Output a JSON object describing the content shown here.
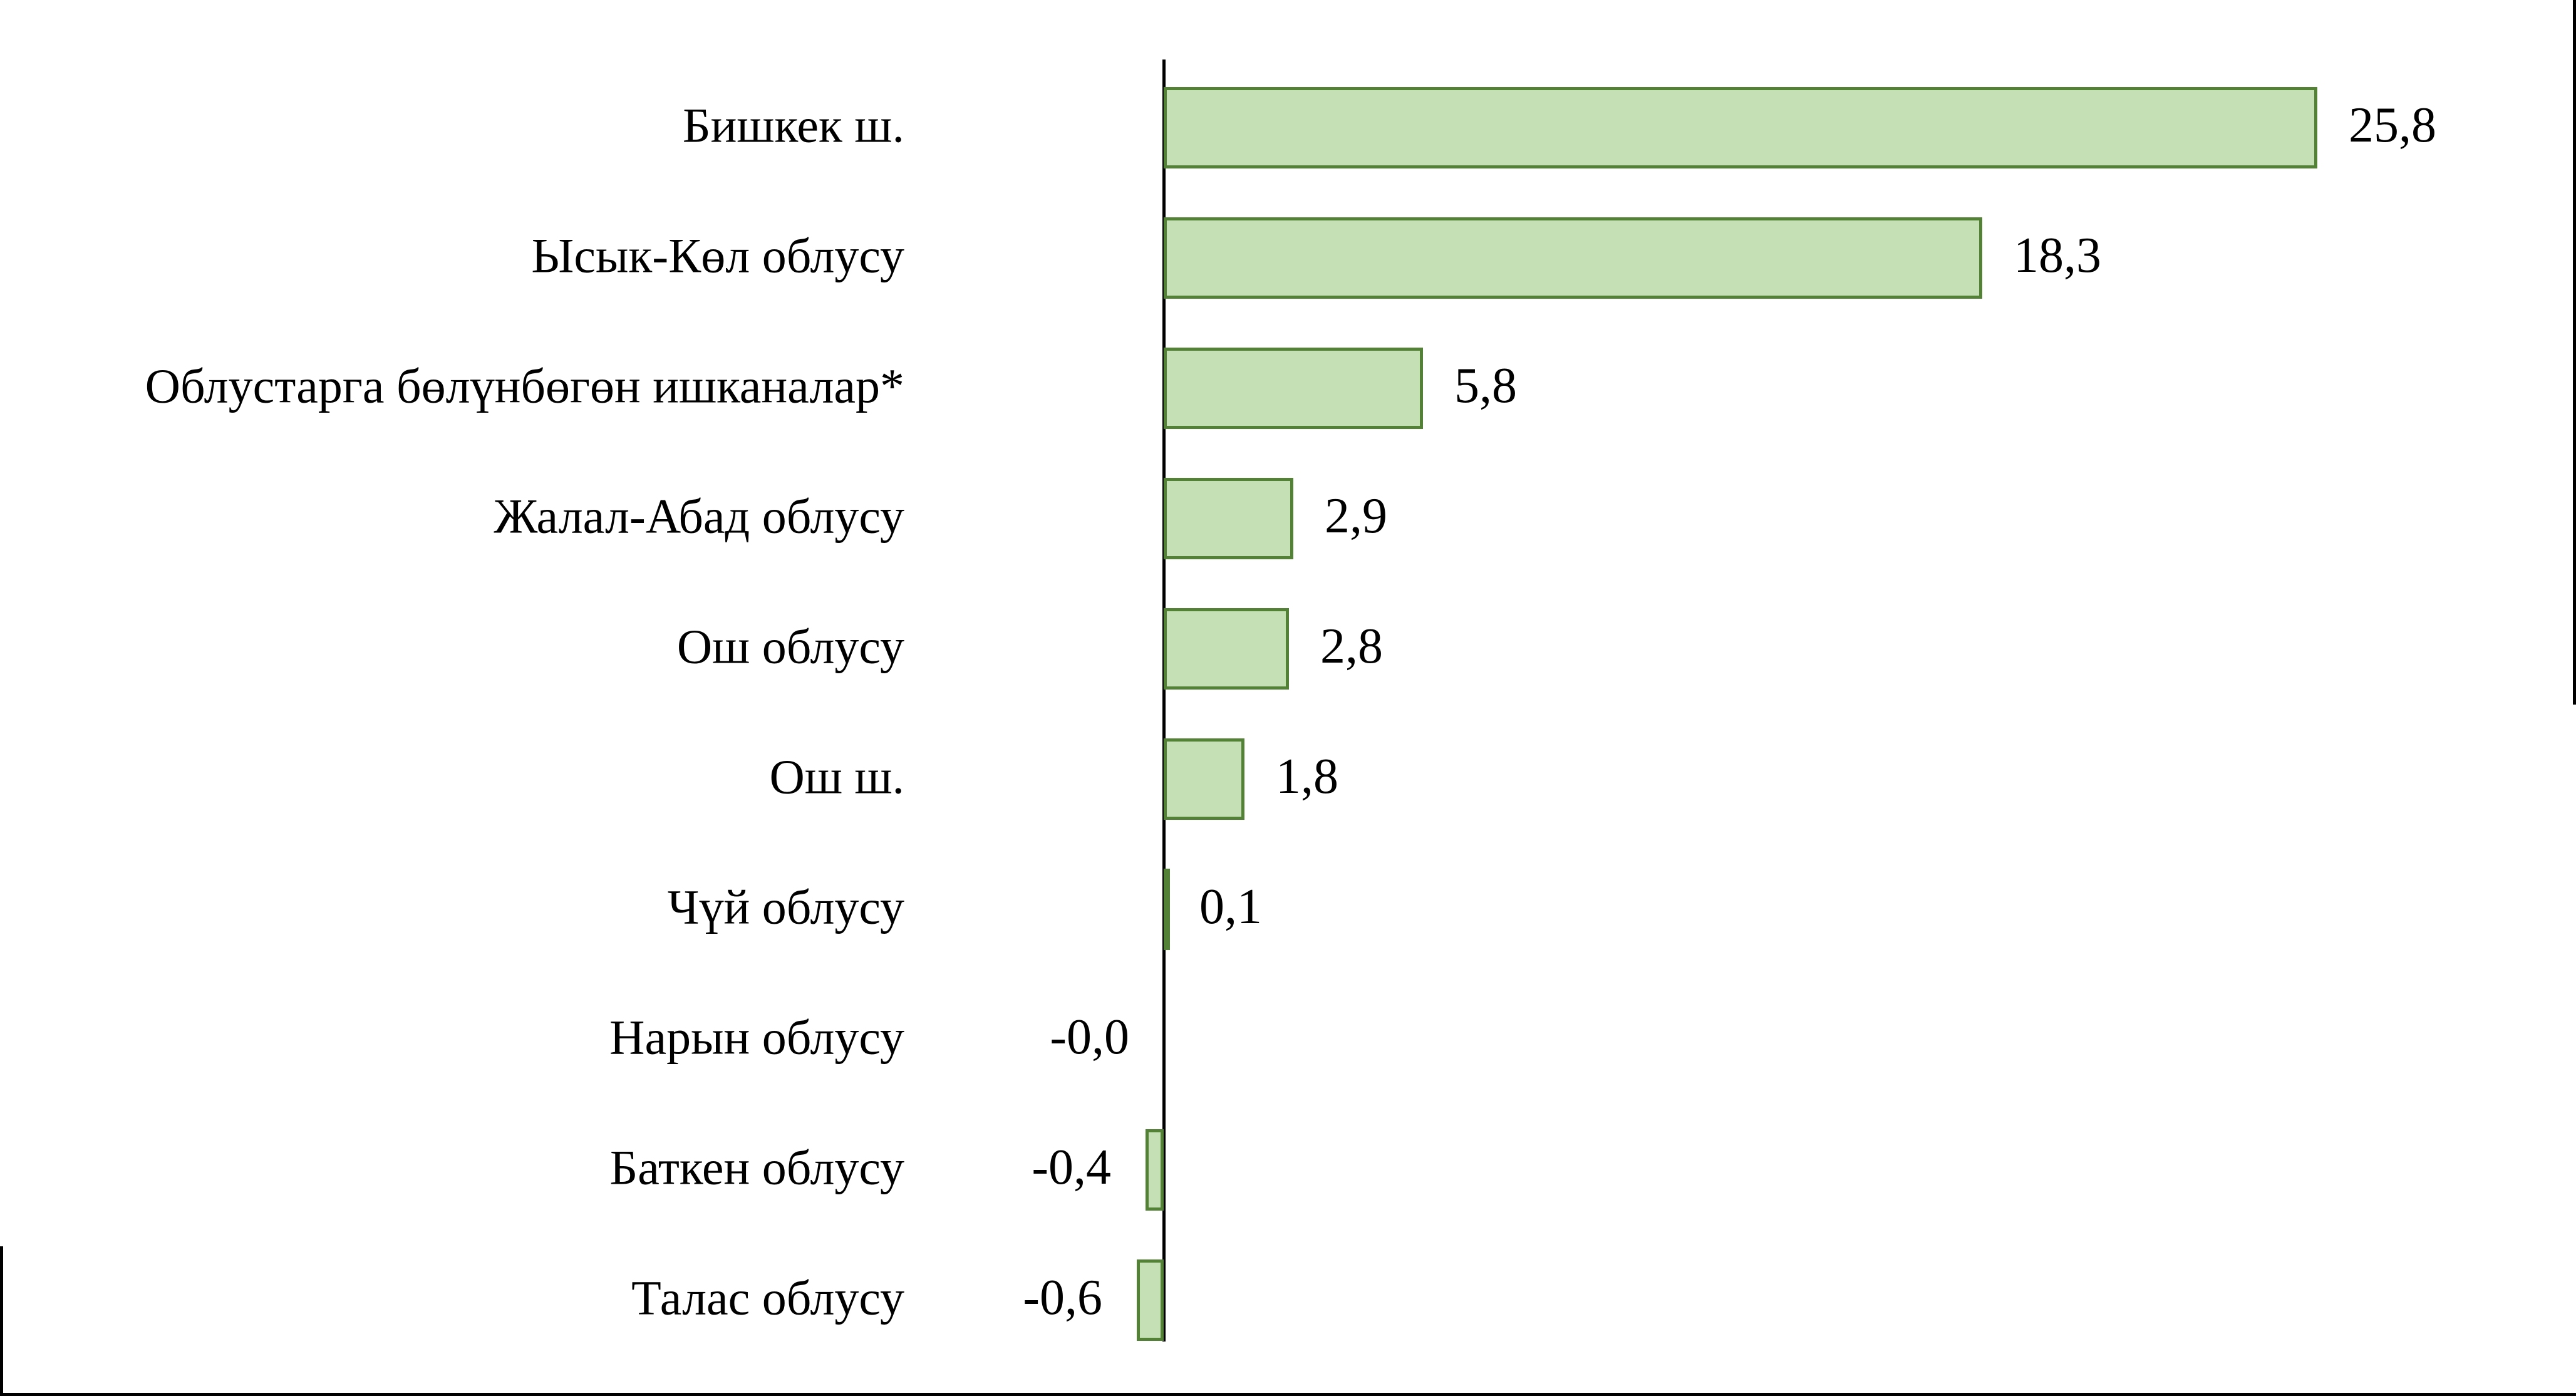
{
  "chart_data": {
    "type": "bar",
    "orientation": "horizontal",
    "title": "",
    "xlabel": "",
    "ylabel": "",
    "grid": false,
    "legend": null,
    "categories": [
      "Бишкек ш.",
      "Ысык-Көл облусу",
      "Облустарга  бөлүнбөгөн  ишканалар*",
      "Жалал-Абад облусу",
      "Ош облусу",
      "Ош ш.",
      "Чүй облусу",
      "Нарын облусу",
      "Баткен облусу",
      "Талас облусу"
    ],
    "values": [
      25.8,
      18.3,
      5.8,
      2.9,
      2.8,
      1.8,
      0.1,
      -0.0,
      -0.4,
      -0.6
    ],
    "value_labels": [
      "25,8",
      "18,3",
      "5,8",
      "2,9",
      "2,8",
      "1,8",
      "0,1",
      "-0,0",
      "-0,4",
      "-0,6"
    ],
    "xlim": [
      -1.5,
      30
    ],
    "colors": {
      "bar_fill": "#c5e0b4",
      "bar_border": "#538135",
      "axis": "#000000",
      "text": "#000000",
      "background": "#ffffff"
    }
  }
}
